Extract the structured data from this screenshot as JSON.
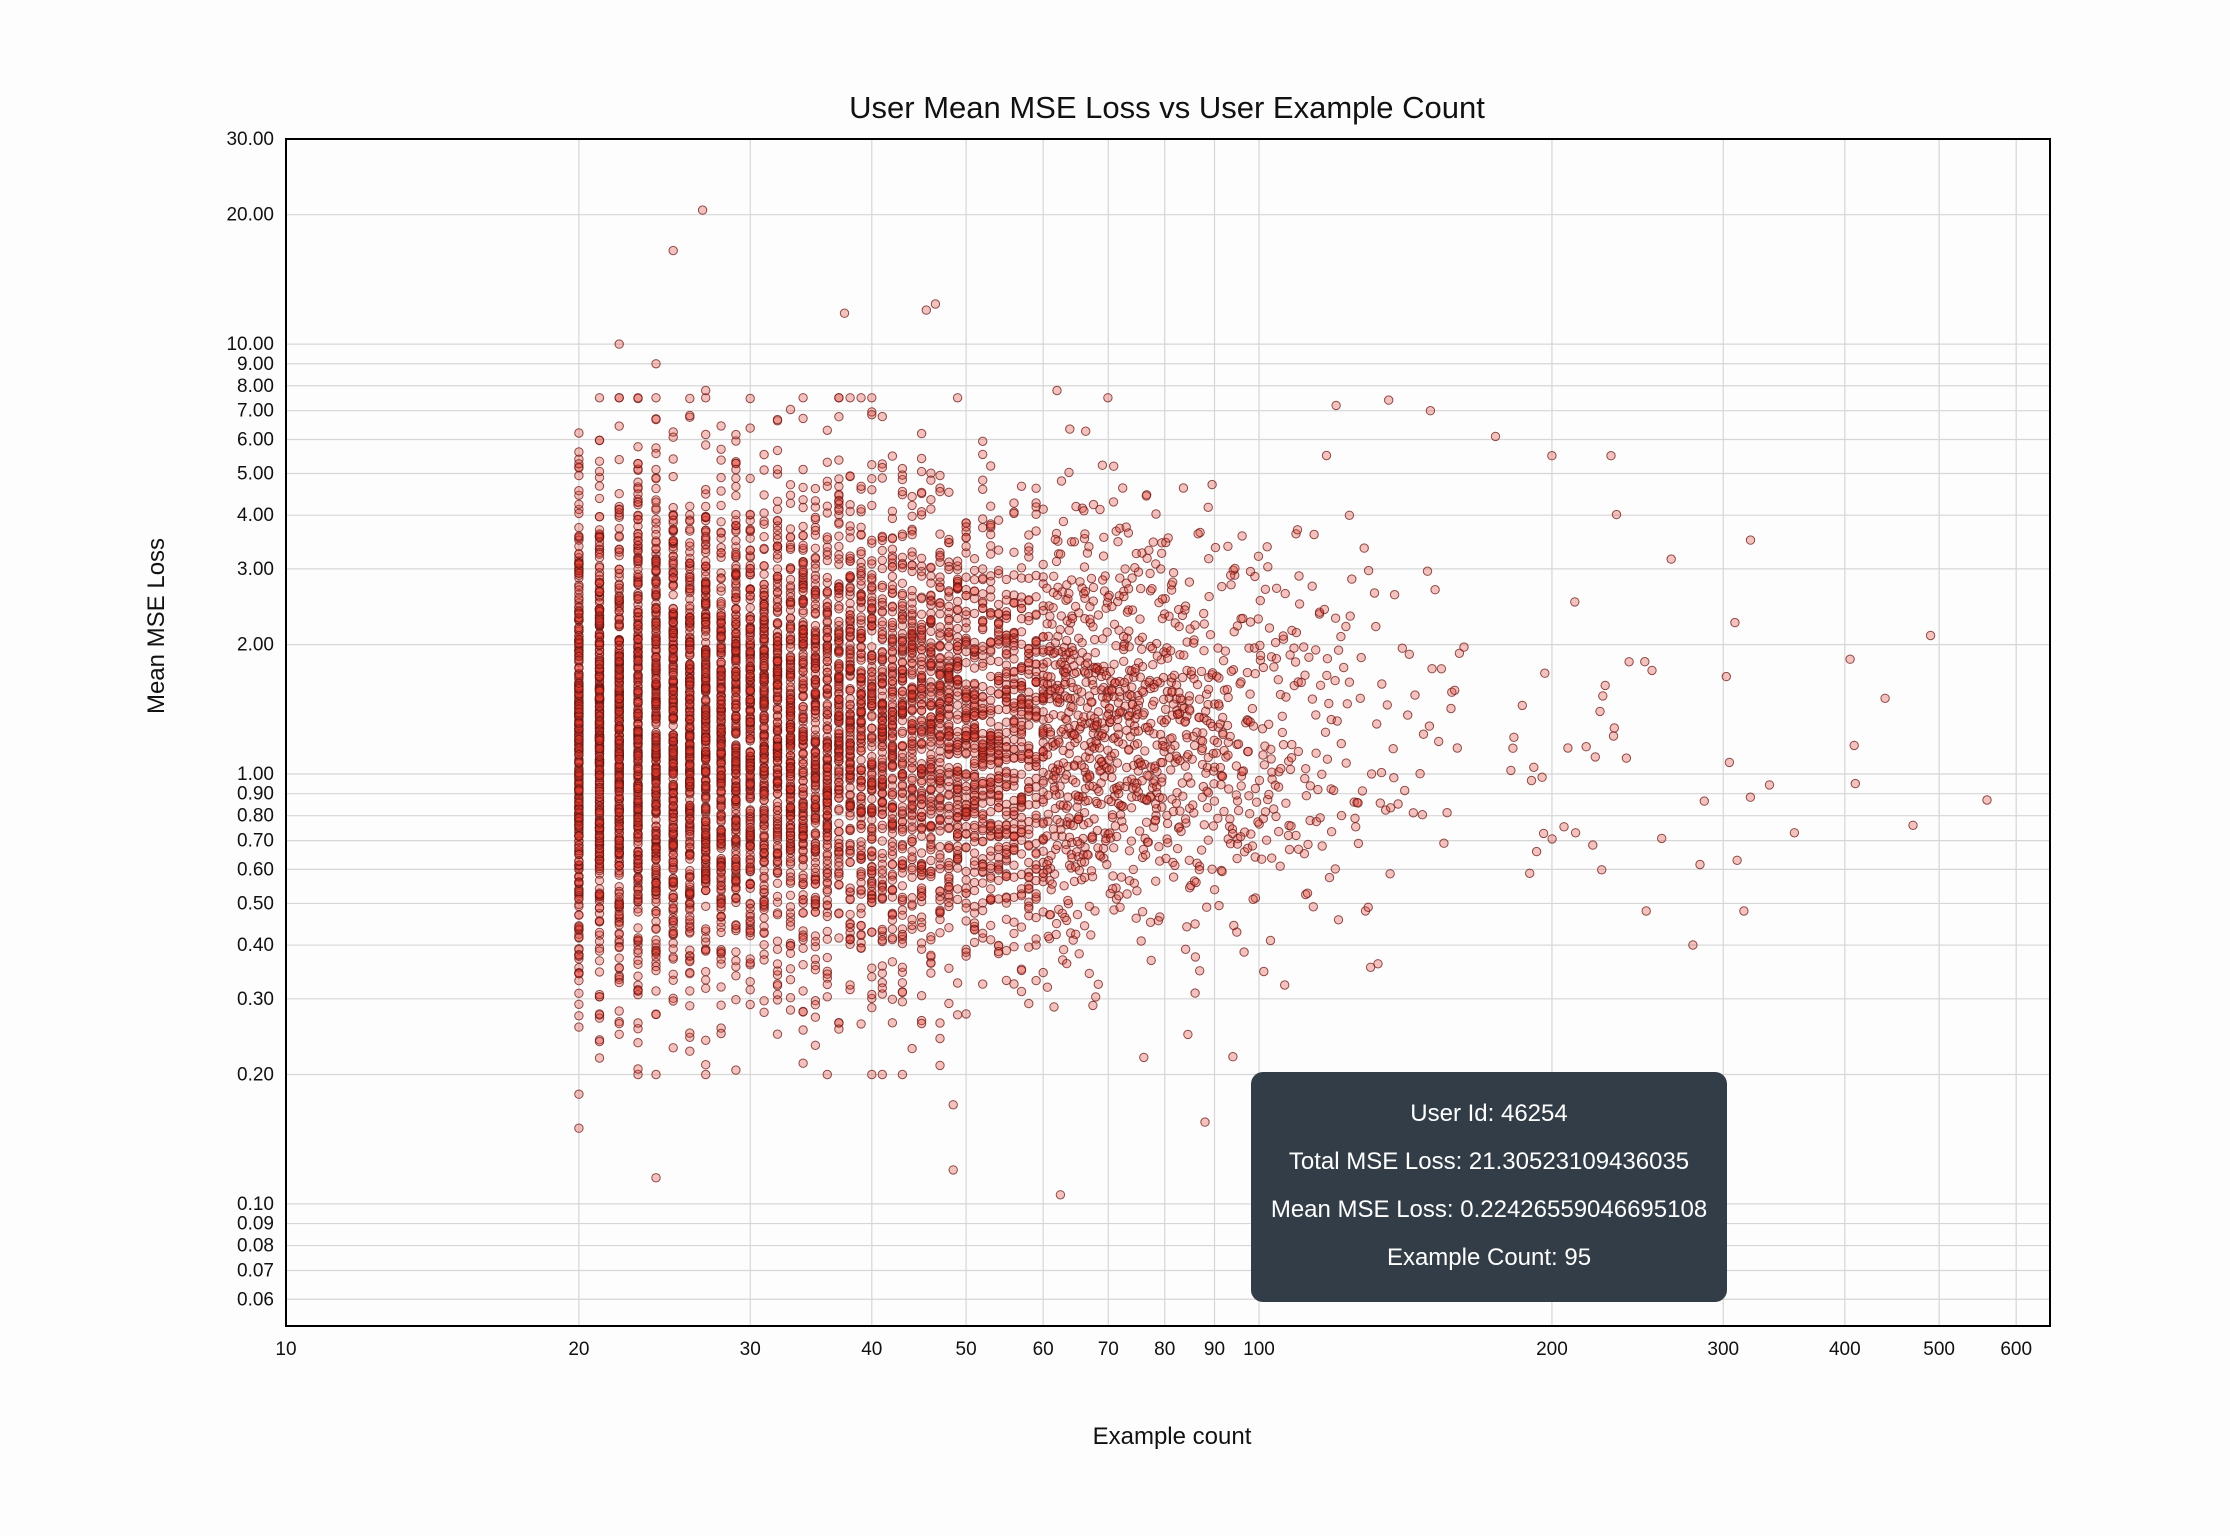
{
  "chart_data": {
    "type": "scatter",
    "title": "User Mean MSE Loss vs User Example Count",
    "xlabel": "Example count",
    "ylabel": "Mean MSE Loss",
    "xscale": "log",
    "yscale": "log",
    "xlim": [
      10,
      650
    ],
    "ylim": [
      0.052,
      30
    ],
    "grid": true,
    "marker_color": "#e23a2e",
    "marker_edge": "#6b1410",
    "x_ticks": [
      {
        "value": 10,
        "label": "10"
      },
      {
        "value": 20,
        "label": "20"
      },
      {
        "value": 30,
        "label": "30"
      },
      {
        "value": 40,
        "label": "40"
      },
      {
        "value": 50,
        "label": "50"
      },
      {
        "value": 60,
        "label": "60"
      },
      {
        "value": 70,
        "label": "70"
      },
      {
        "value": 80,
        "label": "80"
      },
      {
        "value": 90,
        "label": "90"
      },
      {
        "value": 100,
        "label": "100"
      },
      {
        "value": 200,
        "label": "200"
      },
      {
        "value": 300,
        "label": "300"
      },
      {
        "value": 400,
        "label": "400"
      },
      {
        "value": 500,
        "label": "500"
      },
      {
        "value": 600,
        "label": "600"
      }
    ],
    "y_ticks": [
      {
        "value": 0.06,
        "label": "0.06"
      },
      {
        "value": 0.07,
        "label": "0.07"
      },
      {
        "value": 0.08,
        "label": "0.08"
      },
      {
        "value": 0.09,
        "label": "0.09"
      },
      {
        "value": 0.1,
        "label": "0.10"
      },
      {
        "value": 0.2,
        "label": "0.20"
      },
      {
        "value": 0.3,
        "label": "0.30"
      },
      {
        "value": 0.4,
        "label": "0.40"
      },
      {
        "value": 0.5,
        "label": "0.50"
      },
      {
        "value": 0.6,
        "label": "0.60"
      },
      {
        "value": 0.7,
        "label": "0.70"
      },
      {
        "value": 0.8,
        "label": "0.80"
      },
      {
        "value": 0.9,
        "label": "0.90"
      },
      {
        "value": 1,
        "label": "1.00"
      },
      {
        "value": 2,
        "label": "2.00"
      },
      {
        "value": 3,
        "label": "3.00"
      },
      {
        "value": 4,
        "label": "4.00"
      },
      {
        "value": 5,
        "label": "5.00"
      },
      {
        "value": 6,
        "label": "6.00"
      },
      {
        "value": 7,
        "label": "7.00"
      },
      {
        "value": 8,
        "label": "8.00"
      },
      {
        "value": 9,
        "label": "9.00"
      },
      {
        "value": 10,
        "label": "10.00"
      },
      {
        "value": 20,
        "label": "20.00"
      },
      {
        "value": 30,
        "label": "30.00"
      }
    ],
    "outliers": [
      [
        20,
        0.15
      ],
      [
        20,
        0.18
      ],
      [
        24,
        0.115
      ],
      [
        26.8,
        20.5
      ],
      [
        25,
        16.5
      ],
      [
        37.5,
        11.8
      ],
      [
        45.5,
        12.0
      ],
      [
        46.5,
        12.4
      ],
      [
        22,
        10.0
      ],
      [
        24,
        9.0
      ],
      [
        48.5,
        0.12
      ],
      [
        62.5,
        0.105
      ],
      [
        48.5,
        0.17
      ],
      [
        47,
        0.21
      ],
      [
        88,
        0.155
      ],
      [
        94,
        0.22
      ],
      [
        490,
        2.1
      ],
      [
        560,
        0.87
      ],
      [
        405,
        1.85
      ],
      [
        440,
        1.5
      ],
      [
        320,
        3.5
      ],
      [
        470,
        0.76
      ],
      [
        355,
        0.73
      ],
      [
        410,
        0.95
      ],
      [
        315,
        0.48
      ],
      [
        310,
        0.63
      ],
      [
        250,
        0.48
      ],
      [
        230,
        5.5
      ],
      [
        200,
        5.5
      ],
      [
        150,
        7.0
      ],
      [
        120,
        7.2
      ],
      [
        62,
        7.8
      ],
      [
        27,
        7.8
      ],
      [
        175,
        6.1
      ]
    ],
    "tooltip": {
      "user_id": "User Id: 46254",
      "total_loss": "Total MSE Loss: 21.30523109436035",
      "mean_loss": "Mean MSE Loss: 0.22426559046695108",
      "example_count": "Example Count: 95"
    }
  }
}
